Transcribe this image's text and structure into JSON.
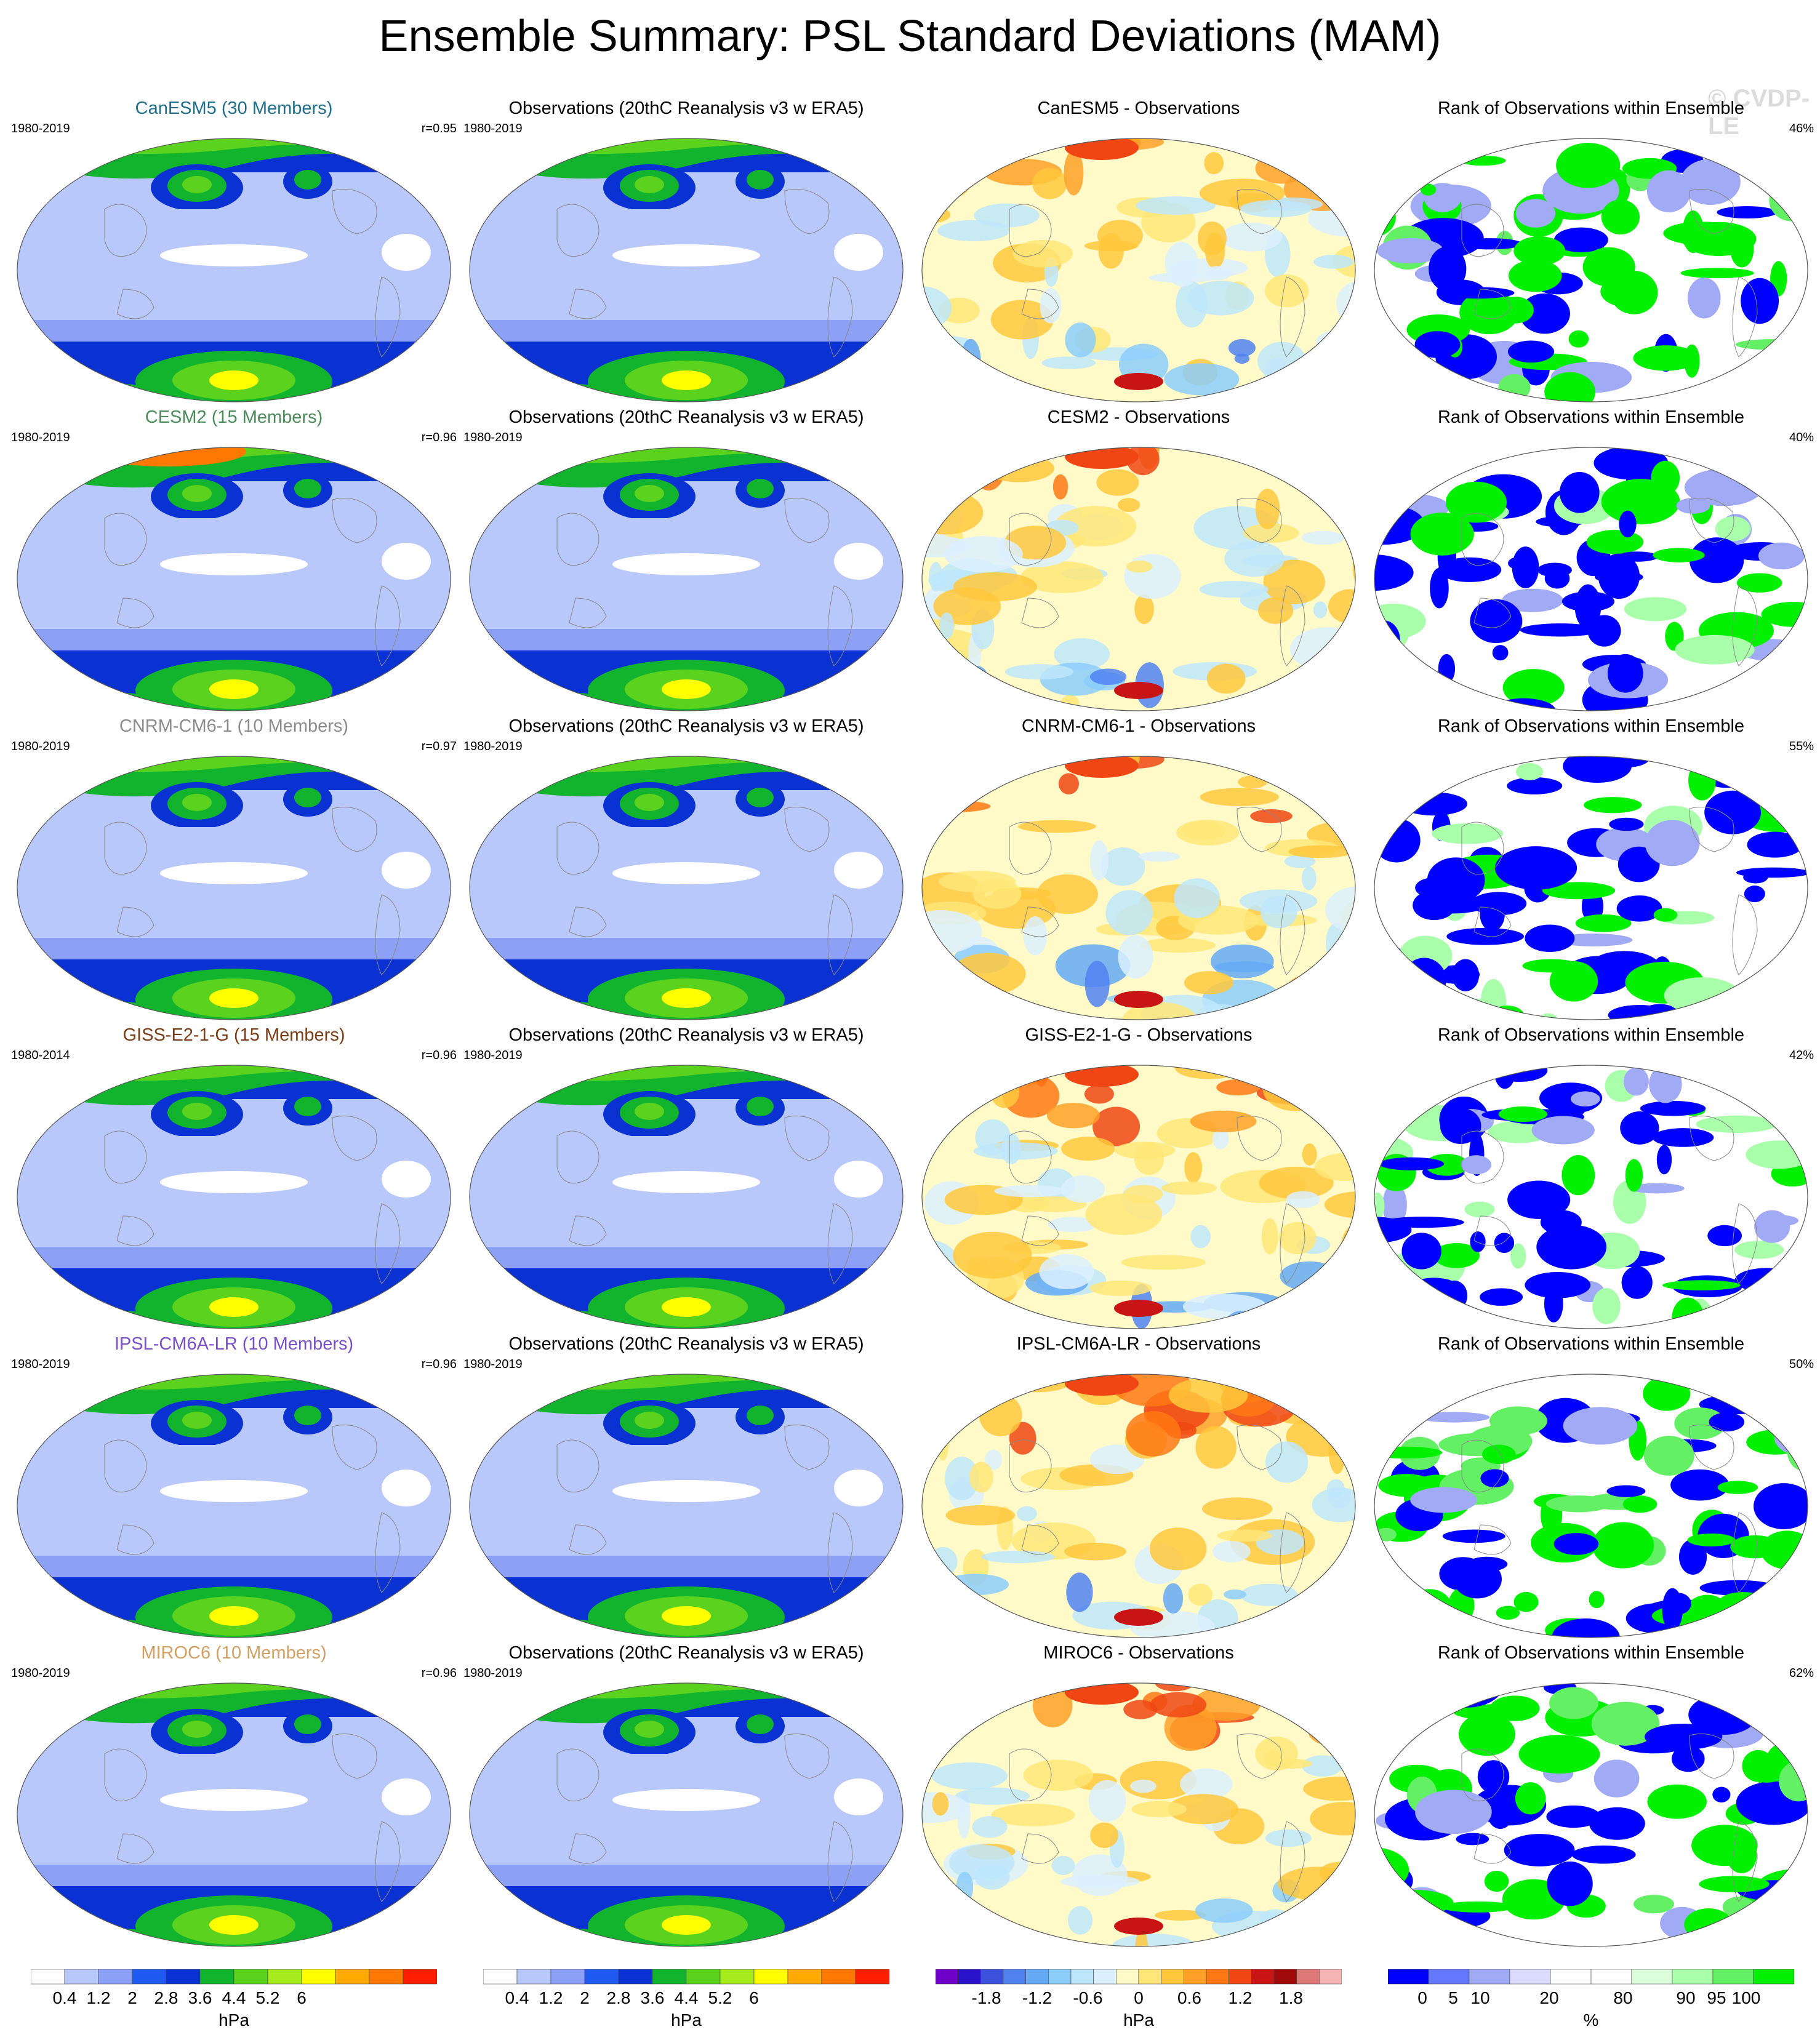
{
  "title": "Ensemble Summary: PSL Standard Deviations (MAM)",
  "watermark": "© CVDP-LE",
  "colors": {
    "std_levels": [
      "#ffffff",
      "#b8c8fa",
      "#8ca0f5",
      "#1f5af0",
      "#0a32d2",
      "#13b42d",
      "#5ad21e",
      "#a5eb1e",
      "#ffff00",
      "#ffaa00",
      "#ff7800",
      "#ff1e00"
    ],
    "diff_levels": [
      "#6e00c8",
      "#2814c8",
      "#3c50dc",
      "#5082f0",
      "#64aaf5",
      "#8ccdfa",
      "#bee6fa",
      "#dcf0ff",
      "#fffac8",
      "#ffe678",
      "#ffc83c",
      "#ffa028",
      "#ff7814",
      "#f04614",
      "#c81414",
      "#a00a0a",
      "#dc7878",
      "#f5b4b4"
    ],
    "rank_levels": [
      "#0000ff",
      "#6478ff",
      "#a0aaf5",
      "#dcdcff",
      "#ffffff",
      "#ffffff",
      "#dcffdc",
      "#aaffaa",
      "#64f064",
      "#00f000"
    ],
    "model_titles": [
      "#1e6e8c",
      "#4a8c5a",
      "#8c8c8c",
      "#7a3c14",
      "#7a50c8",
      "#d2a064"
    ]
  },
  "rows": [
    {
      "model": "CanESM5 (30 Members)",
      "model_period": "1980-2019",
      "r": "r=0.95",
      "obs_title": "Observations (20thC Reanalysis v3 w ERA5)",
      "obs_period": "1980-2019",
      "diff_title": "CanESM5 - Observations",
      "rank_title": "Rank of Observations within Ensemble",
      "rank_pct": "46%"
    },
    {
      "model": "CESM2 (15 Members)",
      "model_period": "1980-2019",
      "r": "r=0.96",
      "obs_title": "Observations (20thC Reanalysis v3 w ERA5)",
      "obs_period": "1980-2019",
      "diff_title": "CESM2 - Observations",
      "rank_title": "Rank of Observations within Ensemble",
      "rank_pct": "40%"
    },
    {
      "model": "CNRM-CM6-1 (10 Members)",
      "model_period": "1980-2019",
      "r": "r=0.97",
      "obs_title": "Observations (20thC Reanalysis v3 w ERA5)",
      "obs_period": "1980-2019",
      "diff_title": "CNRM-CM6-1 - Observations",
      "rank_title": "Rank of Observations within Ensemble",
      "rank_pct": "55%"
    },
    {
      "model": "GISS-E2-1-G (15 Members)",
      "model_period": "1980-2014",
      "r": "r=0.96",
      "obs_title": "Observations (20thC Reanalysis v3 w ERA5)",
      "obs_period": "1980-2019",
      "diff_title": "GISS-E2-1-G - Observations",
      "rank_title": "Rank of Observations within Ensemble",
      "rank_pct": "42%"
    },
    {
      "model": "IPSL-CM6A-LR (10 Members)",
      "model_period": "1980-2019",
      "r": "r=0.96",
      "obs_title": "Observations (20thC Reanalysis v3 w ERA5)",
      "obs_period": "1980-2019",
      "diff_title": "IPSL-CM6A-LR - Observations",
      "rank_title": "Rank of Observations within Ensemble",
      "rank_pct": "50%"
    },
    {
      "model": "MIROC6 (10 Members)",
      "model_period": "1980-2019",
      "r": "r=0.96",
      "obs_title": "Observations (20thC Reanalysis v3 w ERA5)",
      "obs_period": "1980-2019",
      "diff_title": "MIROC6 - Observations",
      "rank_title": "Rank of Observations within Ensemble",
      "rank_pct": "62%"
    }
  ],
  "colorbars": [
    {
      "ticks": [
        "0.4",
        "1.2",
        "2",
        "2.8",
        "3.6",
        "4.4",
        "5.2",
        "6"
      ],
      "unit": "hPa"
    },
    {
      "ticks": [
        "0.4",
        "1.2",
        "2",
        "2.8",
        "3.6",
        "4.4",
        "5.2",
        "6"
      ],
      "unit": "hPa"
    },
    {
      "ticks": [
        "-1.8",
        "-1.2",
        "-0.6",
        "0",
        "0.6",
        "1.2",
        "1.8"
      ],
      "unit": "hPa"
    },
    {
      "ticks": [
        "0",
        "5",
        "10",
        "20",
        "80",
        "90",
        "95",
        "100"
      ],
      "unit": "%"
    }
  ],
  "chart_data": [
    {
      "type": "heatmap",
      "title": "CanESM5 (30 Members)",
      "units": "hPa",
      "projection": "Robinson",
      "field": "PSL standard deviation (MAM)",
      "range": [
        0.4,
        6
      ]
    },
    {
      "type": "heatmap",
      "title": "Observations (20thC Reanalysis v3 w ERA5)",
      "units": "hPa",
      "projection": "Robinson",
      "field": "PSL standard deviation (MAM)",
      "range": [
        0.4,
        6
      ]
    },
    {
      "type": "heatmap",
      "title": "CanESM5 - Observations",
      "units": "hPa",
      "projection": "Robinson",
      "field": "difference",
      "range": [
        -1.8,
        1.8
      ]
    },
    {
      "type": "heatmap",
      "title": "Rank of Observations within Ensemble",
      "units": "%",
      "projection": "Robinson",
      "field": "rank",
      "range": [
        0,
        100
      ]
    }
  ]
}
